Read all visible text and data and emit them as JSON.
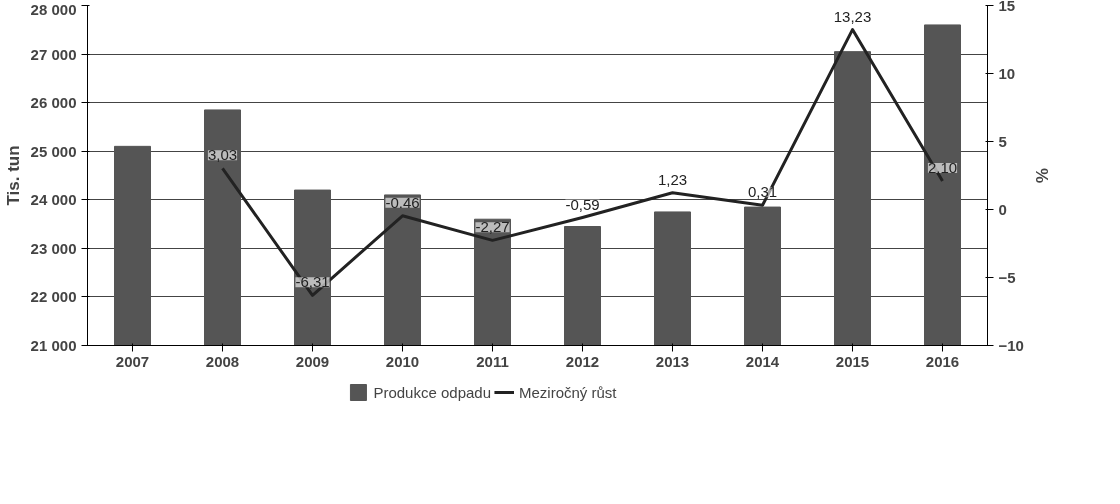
{
  "chart_data": {
    "type": "bar",
    "categories": [
      "2007",
      "2008",
      "2009",
      "2010",
      "2011",
      "2012",
      "2013",
      "2014",
      "2015",
      "2016"
    ],
    "ylabel": "Tis. tun",
    "y2label": "%",
    "ylim": [
      21000,
      28000
    ],
    "yticks": [
      {
        "value": 21000,
        "label": "21 000"
      },
      {
        "value": 22000,
        "label": "22 000"
      },
      {
        "value": 23000,
        "label": "23 000"
      },
      {
        "value": 24000,
        "label": "24 000"
      },
      {
        "value": 25000,
        "label": "25 000"
      },
      {
        "value": 26000,
        "label": "26 000"
      },
      {
        "value": 27000,
        "label": "27 000"
      },
      {
        "value": 28000,
        "label": "28 000"
      }
    ],
    "y2lim": [
      -10,
      15
    ],
    "y2ticks": [
      -10,
      -5,
      0,
      5,
      10,
      15
    ],
    "grid": "y",
    "legend": "bottom",
    "series": [
      {
        "name": "Produkce odpadu",
        "type": "bar",
        "color": "#555555",
        "values": [
          25100,
          25850,
          24200,
          24100,
          23600,
          23450,
          23750,
          23850,
          27050,
          27600
        ]
      },
      {
        "name": "Meziročný růst",
        "type": "line",
        "axis": "y2",
        "color": "#222222",
        "values": [
          null,
          3.03,
          -6.31,
          -0.46,
          -2.27,
          -0.59,
          1.23,
          0.31,
          13.23,
          2.1
        ],
        "value_labels": [
          null,
          "3,03",
          "-6,31",
          "-0.46",
          "-2,27",
          "-0,59",
          "1,23",
          "0,31",
          "13,23",
          "2,10"
        ]
      }
    ]
  }
}
